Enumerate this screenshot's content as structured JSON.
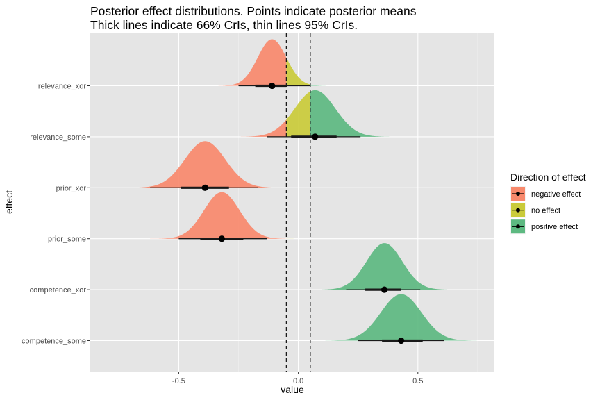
{
  "chart_data": {
    "type": "halfeye",
    "title": "Posterior effect distributions. Points indicate posterior means",
    "subtitle": "Thick lines indicate 66% CrIs, thin lines 95% CrIs.",
    "xlabel": "value",
    "ylabel": "effect",
    "xlim": [
      -0.87,
      0.82
    ],
    "x_ticks": [
      -0.5,
      0.0,
      0.5
    ],
    "x_tick_labels": [
      "-0.5",
      "0.0",
      "0.5"
    ],
    "reference_lines": [
      -0.05,
      0.05
    ],
    "grid": true,
    "legend": {
      "title": "Direction of effect",
      "position": "right",
      "entries": [
        {
          "label": "negative effect",
          "color": "#F8896C"
        },
        {
          "label": "no effect",
          "color": "#CACB3A"
        },
        {
          "label": "positive effect",
          "color": "#5DB981"
        }
      ]
    },
    "categories": [
      "competence_some",
      "competence_xor",
      "prior_some",
      "prior_xor",
      "relevance_some",
      "relevance_xor"
    ],
    "series": [
      {
        "effect": "competence_some",
        "mean": 0.43,
        "sd": 0.085,
        "ci66": [
          0.35,
          0.52
        ],
        "ci95": [
          0.25,
          0.61
        ]
      },
      {
        "effect": "competence_xor",
        "mean": 0.36,
        "sd": 0.075,
        "ci66": [
          0.28,
          0.43
        ],
        "ci95": [
          0.2,
          0.51
        ]
      },
      {
        "effect": "prior_some",
        "mean": -0.32,
        "sd": 0.075,
        "ci66": [
          -0.41,
          -0.23
        ],
        "ci95": [
          -0.5,
          -0.13
        ]
      },
      {
        "effect": "prior_xor",
        "mean": -0.39,
        "sd": 0.085,
        "ci66": [
          -0.49,
          -0.29
        ],
        "ci95": [
          -0.62,
          -0.17
        ]
      },
      {
        "effect": "relevance_some",
        "mean": 0.07,
        "sd": 0.085,
        "ci66": [
          -0.03,
          0.16
        ],
        "ci95": [
          -0.13,
          0.26
        ]
      },
      {
        "effect": "relevance_xor",
        "mean": -0.11,
        "sd": 0.06,
        "ci66": [
          -0.18,
          -0.05
        ],
        "ci95": [
          -0.25,
          0.05
        ]
      }
    ]
  }
}
